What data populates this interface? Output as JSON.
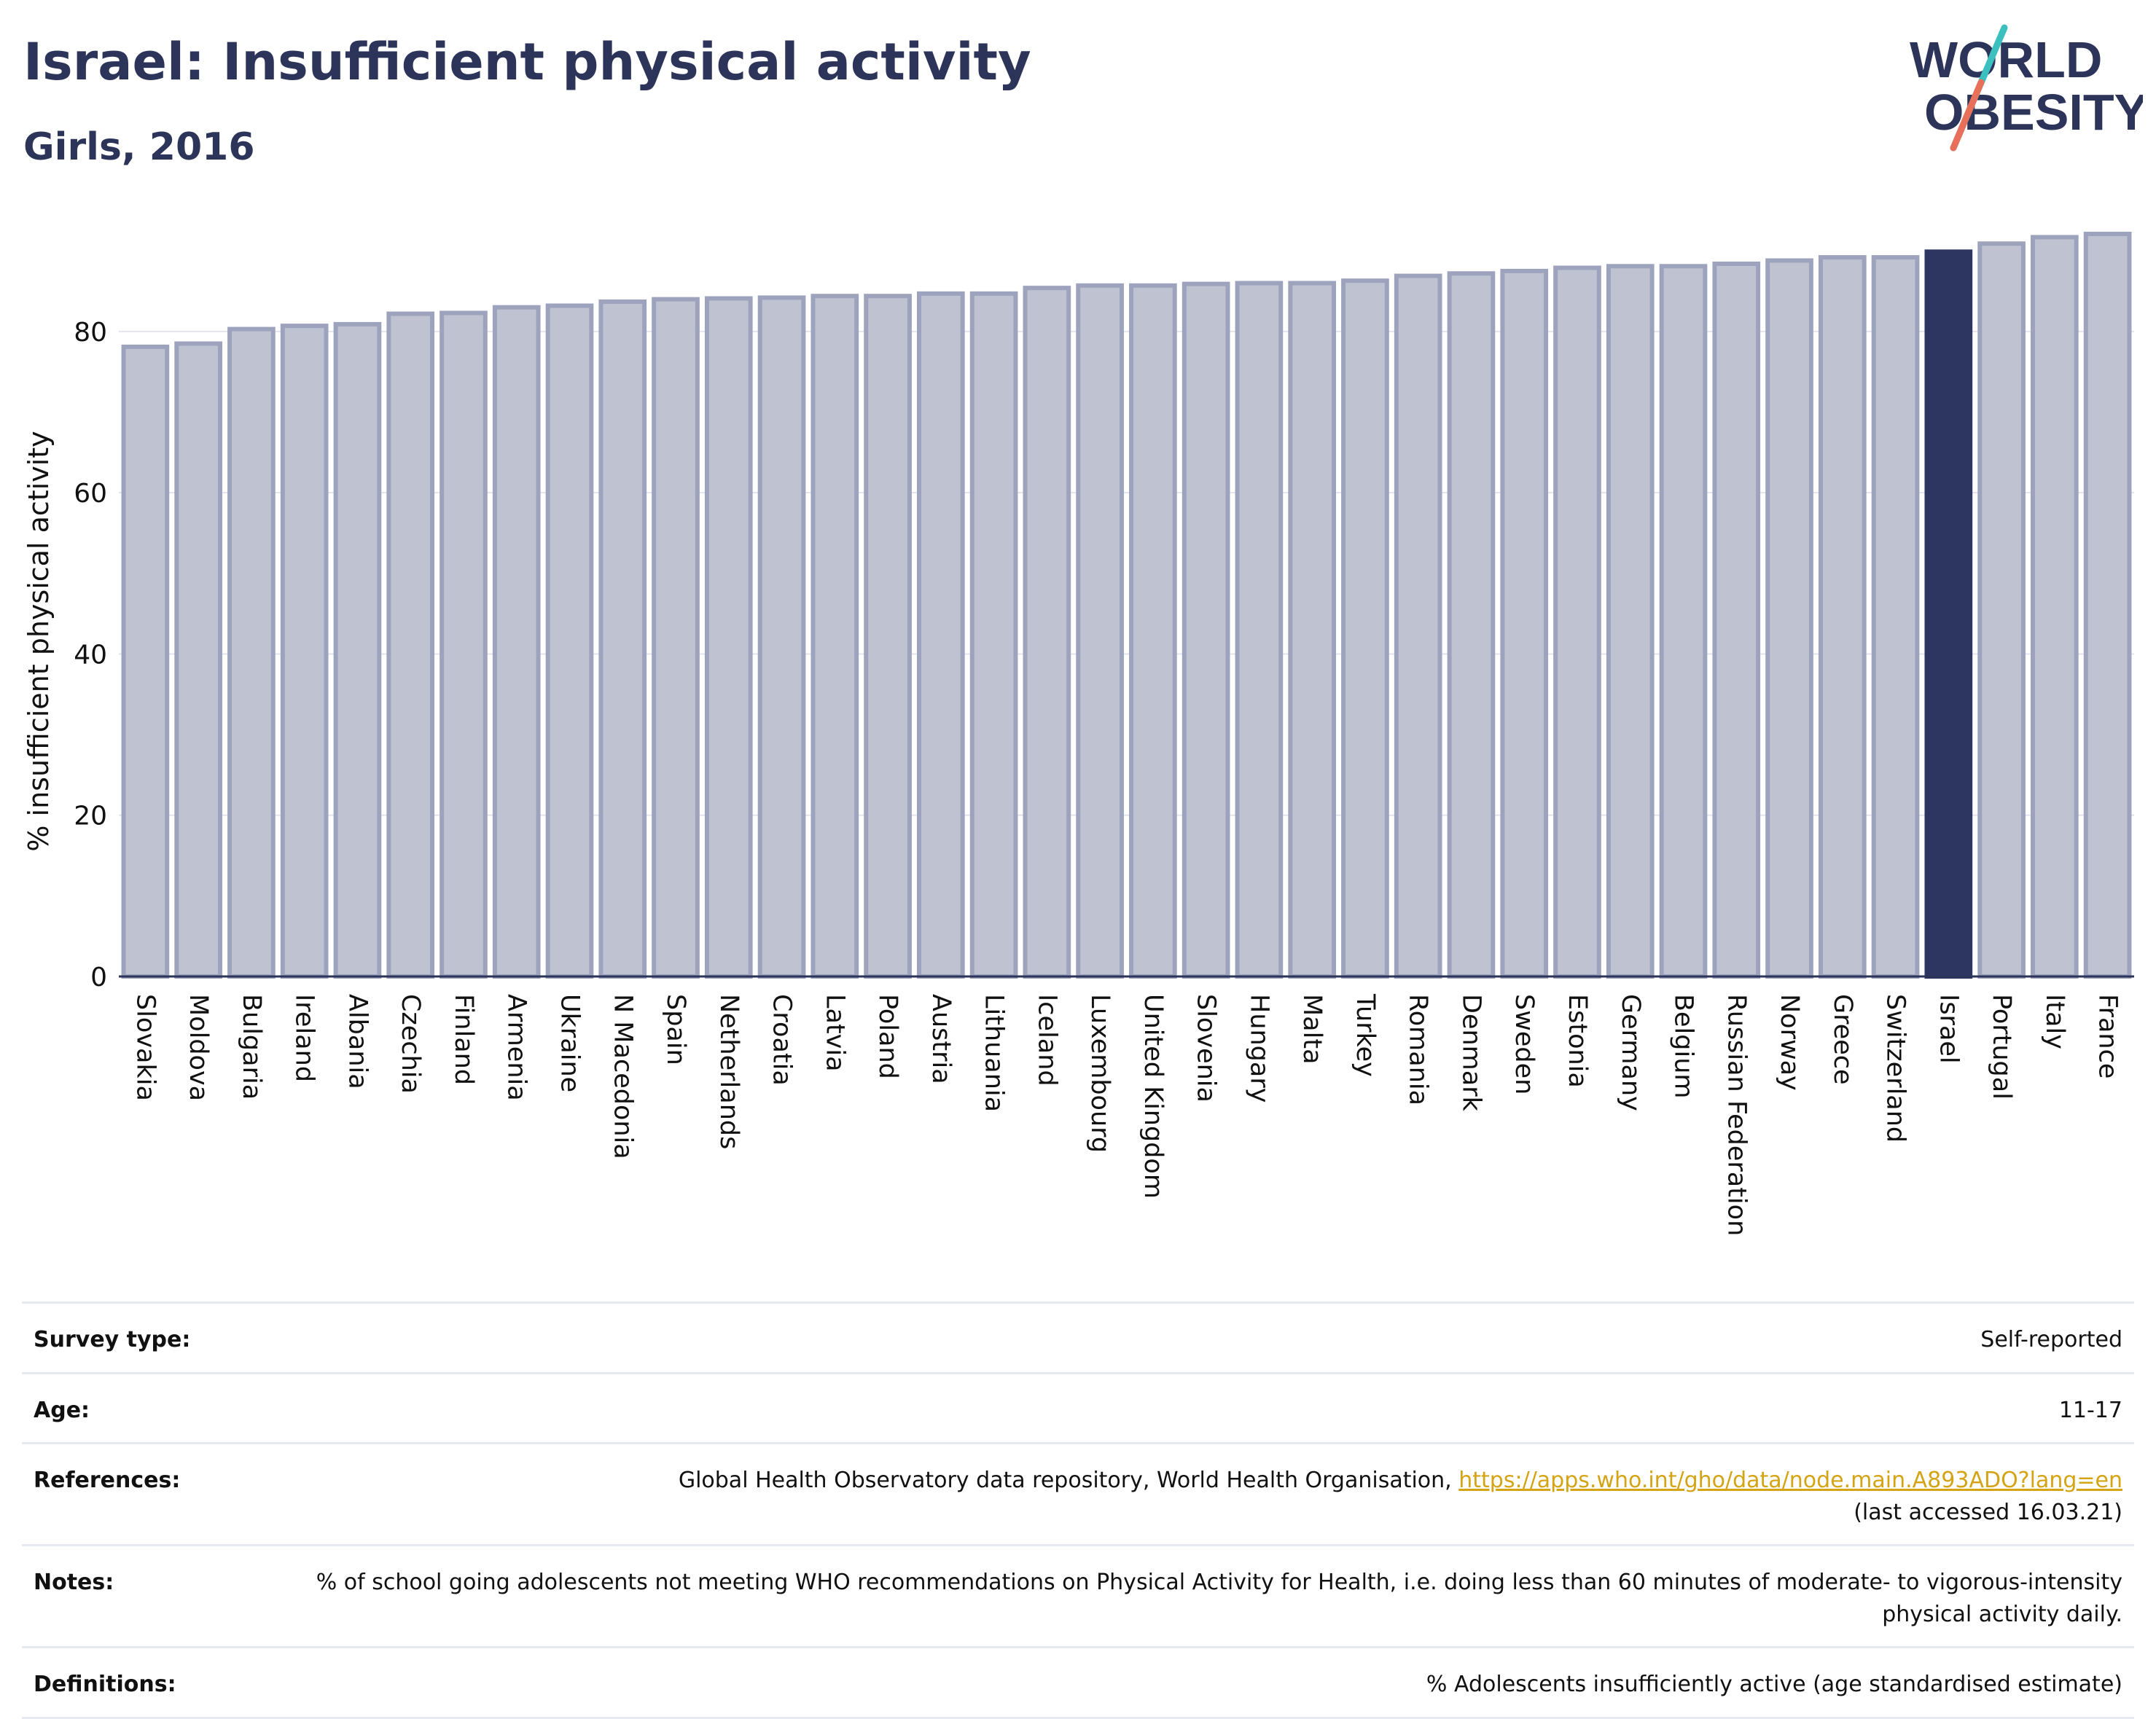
{
  "header": {
    "title": "Israel: Insufficient physical activity",
    "subtitle": "Girls, 2016"
  },
  "logo": {
    "line1": "WORLD",
    "line2": "OBESITY",
    "accent_teal": "#3bbfbf",
    "accent_coral": "#e8705a"
  },
  "colors": {
    "bar_default": "#bfc3d1",
    "bar_border": "#9da3bd",
    "bar_highlight": "#2d3561",
    "text_dark": "#2d3459",
    "link": "#d4a414"
  },
  "chart_data": {
    "type": "bar",
    "ylabel": "% insufficient physical activity",
    "ylim": [
      0,
      94
    ],
    "yticks": [
      0,
      20,
      40,
      60,
      80
    ],
    "grid": true,
    "highlight": "Israel",
    "categories": [
      "Slovakia",
      "Moldova",
      "Bulgaria",
      "Ireland",
      "Albania",
      "Czechia",
      "Finland",
      "Armenia",
      "Ukraine",
      "N Macedonia",
      "Spain",
      "Netherlands",
      "Croatia",
      "Latvia",
      "Poland",
      "Austria",
      "Lithuania",
      "Iceland",
      "Luxembourg",
      "United Kingdom",
      "Slovenia",
      "Hungary",
      "Malta",
      "Turkey",
      "Romania",
      "Denmark",
      "Sweden",
      "Estonia",
      "Germany",
      "Belgium",
      "Russian Federation",
      "Norway",
      "Greece",
      "Switzerland",
      "Israel",
      "Portugal",
      "Italy",
      "France"
    ],
    "values": [
      78.1,
      78.5,
      80.3,
      80.7,
      80.9,
      82.2,
      82.3,
      83.0,
      83.2,
      83.7,
      84.0,
      84.1,
      84.2,
      84.4,
      84.4,
      84.7,
      84.7,
      85.4,
      85.7,
      85.7,
      85.9,
      86.0,
      86.0,
      86.3,
      86.9,
      87.2,
      87.5,
      87.9,
      88.1,
      88.1,
      88.4,
      88.8,
      89.2,
      89.2,
      89.9,
      90.9,
      91.7,
      92.1
    ]
  },
  "meta": {
    "survey_type": {
      "label": "Survey type:",
      "value": "Self-reported"
    },
    "age": {
      "label": "Age:",
      "value": "11-17"
    },
    "references": {
      "label": "References:",
      "text": "Global Health Observatory data repository, World Health Organisation,",
      "link": "https://apps.who.int/gho/data/node.main.A893ADO?lang=en",
      "accessed": "(last accessed 16.03.21)"
    },
    "notes": {
      "label": "Notes:",
      "value": "% of school going adolescents not meeting WHO recommendations on Physical Activity for Health, i.e. doing less than 60 minutes of moderate- to vigorous-intensity physical activity daily."
    },
    "definitions": {
      "label": "Definitions:",
      "value": "% Adolescents insufficiently active (age standardised estimate)"
    }
  }
}
